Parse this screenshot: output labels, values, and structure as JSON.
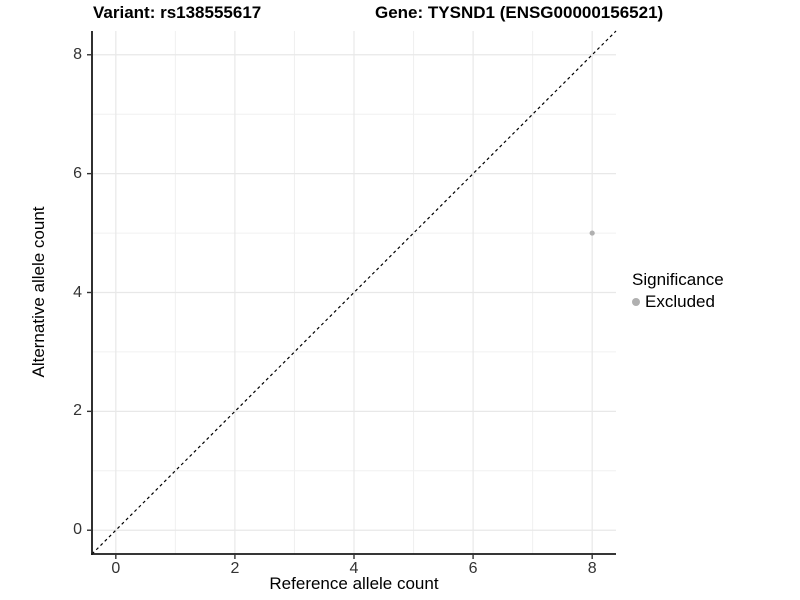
{
  "chart_data": {
    "type": "scatter",
    "title_left": "Variant: rs138555617",
    "title_right": "Gene: TYSND1 (ENSG00000156521)",
    "xlabel": "Reference allele count",
    "ylabel": "Alternative allele count",
    "xlim": [
      -0.4,
      8.4
    ],
    "ylim": [
      -0.4,
      8.4
    ],
    "x_ticks": [
      0,
      2,
      4,
      6,
      8
    ],
    "y_ticks": [
      0,
      2,
      4,
      6,
      8
    ],
    "x_minor_ticks": [
      1,
      3,
      5,
      7
    ],
    "y_minor_ticks": [
      1,
      3,
      5,
      7
    ],
    "grid": true,
    "points": [
      {
        "x": 8,
        "y": 5,
        "series": "Excluded"
      }
    ],
    "reference_line": {
      "type": "identity",
      "style": "dashed",
      "color": "#000000"
    },
    "legend": {
      "title": "Significance",
      "position": "right",
      "entries": [
        {
          "label": "Excluded",
          "color": "#b0b0b0"
        }
      ]
    },
    "colors": {
      "point": "#b0b0b0",
      "grid_major": "#e8e8e8",
      "grid_minor": "#f0f0f0",
      "axis_line": "#1a1a1a",
      "tick_mark": "#333333",
      "background": "#ffffff"
    }
  }
}
